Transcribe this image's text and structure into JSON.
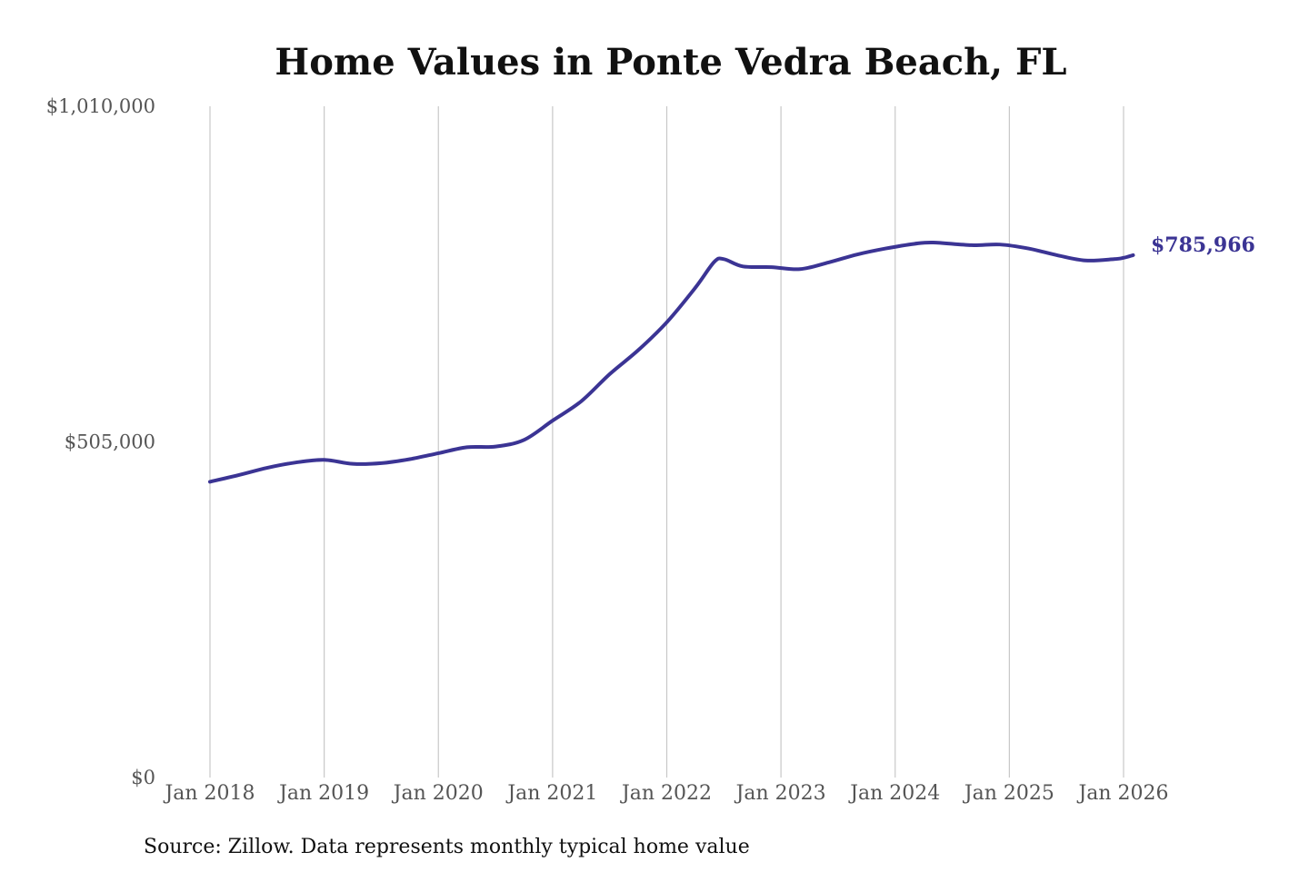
{
  "colors": {
    "series": "#3b3494",
    "grid": "#c8c8c8",
    "tick_text": "#555555",
    "title_text": "#111111"
  },
  "chart_data": {
    "type": "line",
    "title": "Home Values in Ponte Vedra Beach, FL",
    "xlabel": "",
    "ylabel": "",
    "ylim": [
      0,
      1010000
    ],
    "y_ticks": [
      "$0",
      "$505,000",
      "$1,010,000"
    ],
    "y_tick_values": [
      0,
      505000,
      1010000
    ],
    "x_ticks": [
      "Jan 2018",
      "Jan 2019",
      "Jan 2020",
      "Jan 2021",
      "Jan 2022",
      "Jan 2023",
      "Jan 2024",
      "Jan 2025",
      "Jan 2026"
    ],
    "x_tick_values": [
      "2018-01",
      "2019-01",
      "2020-01",
      "2021-01",
      "2022-01",
      "2023-01",
      "2024-01",
      "2025-01",
      "2026-01"
    ],
    "grid": "vertical",
    "legend": "none",
    "end_label": "$785,966",
    "series": [
      {
        "x": [
          "2018-01",
          "2018-04",
          "2018-07",
          "2018-10",
          "2019-01",
          "2019-04",
          "2019-07",
          "2019-10",
          "2020-01",
          "2020-04",
          "2020-07",
          "2020-10",
          "2021-01",
          "2021-04",
          "2021-07",
          "2021-10",
          "2022-01",
          "2022-04",
          "2022-06",
          "2022-07",
          "2022-09",
          "2022-12",
          "2023-03",
          "2023-06",
          "2023-09",
          "2023-12",
          "2024-03",
          "2024-05",
          "2024-09",
          "2024-12",
          "2025-03",
          "2025-06",
          "2025-09",
          "2025-12",
          "2026-01",
          "2026-02"
        ],
        "y": [
          445000,
          455000,
          466000,
          474000,
          478000,
          472000,
          473000,
          479000,
          488000,
          497000,
          498000,
          508000,
          537000,
          566000,
          607000,
          643000,
          685000,
          737000,
          776000,
          780000,
          769000,
          768000,
          765000,
          775000,
          787000,
          796000,
          803000,
          805000,
          801000,
          802000,
          796000,
          786000,
          778000,
          780000,
          782000,
          785966
        ]
      }
    ],
    "source": "Source: Zillow. Data represents monthly typical home value"
  }
}
